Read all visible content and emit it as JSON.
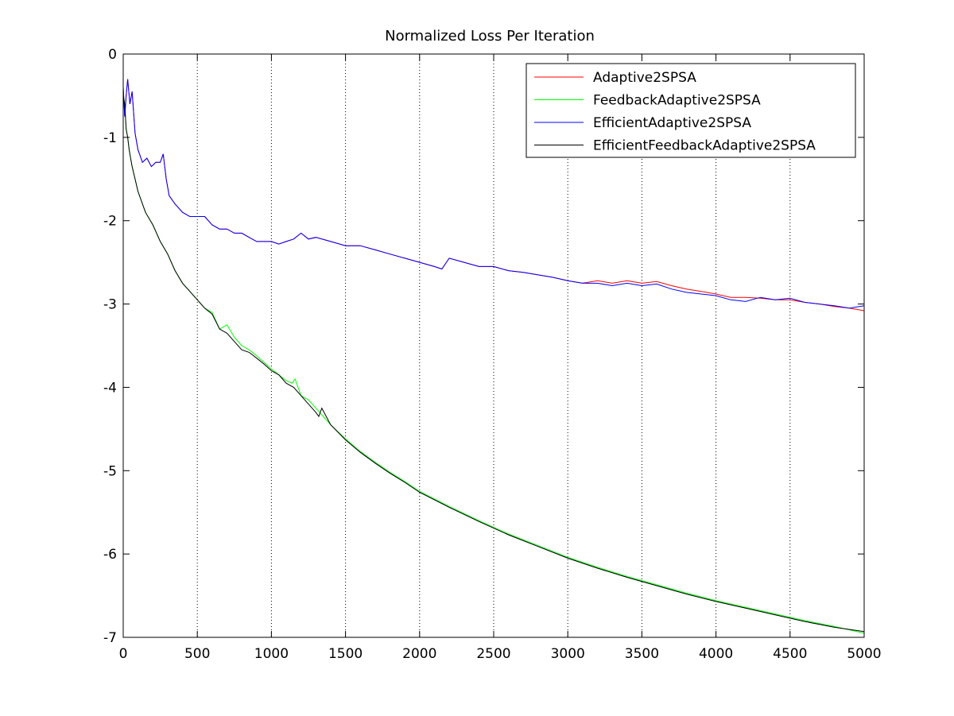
{
  "chart_data": {
    "type": "line",
    "title": "Normalized Loss Per Iteration",
    "xlabel": "",
    "ylabel": "",
    "xlim": [
      0,
      5000
    ],
    "ylim": [
      -7,
      0
    ],
    "x_ticks": [
      0,
      500,
      1000,
      1500,
      2000,
      2500,
      3000,
      3500,
      4000,
      4500,
      5000
    ],
    "y_ticks": [
      0,
      -1,
      -2,
      -3,
      -4,
      -5,
      -6,
      -7
    ],
    "x_tick_labels": [
      "0",
      "500",
      "1000",
      "1500",
      "2000",
      "2500",
      "3000",
      "3500",
      "4000",
      "4500",
      "5000"
    ],
    "y_tick_labels": [
      "0",
      "-1",
      "-2",
      "-3",
      "-4",
      "-5",
      "-6",
      "-7"
    ],
    "grid": "vertical dotted lines at x ticks",
    "legend_position": "top-right",
    "series": [
      {
        "name": "Adaptive2SPSA",
        "color": "#ff0000",
        "x": [
          0,
          10,
          20,
          30,
          45,
          60,
          80,
          100,
          130,
          160,
          190,
          220,
          250,
          270,
          290,
          310,
          350,
          400,
          450,
          500,
          550,
          600,
          650,
          700,
          750,
          800,
          850,
          900,
          950,
          1000,
          1050,
          1100,
          1150,
          1200,
          1250,
          1300,
          1400,
          1500,
          1600,
          1700,
          1800,
          1900,
          2000,
          2100,
          2150,
          2200,
          2300,
          2400,
          2500,
          2600,
          2700,
          2800,
          2900,
          3000,
          3100,
          3200,
          3300,
          3400,
          3500,
          3600,
          3700,
          3800,
          3900,
          4000,
          4100,
          4200,
          4300,
          4400,
          4500,
          4600,
          4700,
          4800,
          4900,
          5000
        ],
        "y": [
          -0.4,
          -0.75,
          -0.5,
          -0.3,
          -0.6,
          -0.45,
          -0.95,
          -1.15,
          -1.3,
          -1.25,
          -1.35,
          -1.3,
          -1.3,
          -1.2,
          -1.5,
          -1.7,
          -1.8,
          -1.9,
          -1.95,
          -1.95,
          -1.95,
          -2.05,
          -2.1,
          -2.1,
          -2.15,
          -2.15,
          -2.2,
          -2.25,
          -2.25,
          -2.25,
          -2.28,
          -2.25,
          -2.22,
          -2.15,
          -2.22,
          -2.2,
          -2.25,
          -2.3,
          -2.3,
          -2.35,
          -2.4,
          -2.45,
          -2.5,
          -2.55,
          -2.58,
          -2.45,
          -2.5,
          -2.55,
          -2.55,
          -2.6,
          -2.62,
          -2.65,
          -2.68,
          -2.72,
          -2.75,
          -2.72,
          -2.75,
          -2.72,
          -2.75,
          -2.73,
          -2.78,
          -2.82,
          -2.85,
          -2.88,
          -2.92,
          -2.92,
          -2.93,
          -2.95,
          -2.95,
          -2.98,
          -3.0,
          -3.03,
          -3.05,
          -3.08
        ]
      },
      {
        "name": "FeedbackAdaptive2SPSA",
        "color": "#00ff00",
        "x": [
          0,
          10,
          20,
          30,
          40,
          50,
          60,
          80,
          100,
          150,
          200,
          250,
          300,
          350,
          400,
          450,
          500,
          550,
          600,
          650,
          700,
          750,
          800,
          850,
          900,
          950,
          1000,
          1050,
          1100,
          1140,
          1160,
          1200,
          1250,
          1300,
          1400,
          1500,
          1600,
          1700,
          1800,
          1900,
          2000,
          2200,
          2400,
          2600,
          2800,
          3000,
          3200,
          3400,
          3600,
          3800,
          4000,
          4200,
          4400,
          4600,
          4800,
          5000
        ],
        "y": [
          -0.5,
          -0.6,
          -0.9,
          -1.0,
          -1.15,
          -1.25,
          -1.35,
          -1.5,
          -1.65,
          -1.9,
          -2.05,
          -2.25,
          -2.4,
          -2.6,
          -2.75,
          -2.85,
          -2.95,
          -3.05,
          -3.1,
          -3.3,
          -3.25,
          -3.4,
          -3.5,
          -3.55,
          -3.62,
          -3.7,
          -3.78,
          -3.85,
          -3.92,
          -3.95,
          -3.9,
          -4.1,
          -4.15,
          -4.25,
          -4.45,
          -4.62,
          -4.77,
          -4.9,
          -5.02,
          -5.13,
          -5.25,
          -5.43,
          -5.6,
          -5.76,
          -5.9,
          -6.04,
          -6.16,
          -6.27,
          -6.37,
          -6.47,
          -6.56,
          -6.64,
          -6.72,
          -6.8,
          -6.87,
          -6.95
        ]
      },
      {
        "name": "EfficientAdaptive2SPSA",
        "color": "#0000ff",
        "x": [
          0,
          10,
          20,
          30,
          45,
          60,
          80,
          100,
          130,
          160,
          190,
          220,
          250,
          270,
          290,
          310,
          350,
          400,
          450,
          500,
          550,
          600,
          650,
          700,
          750,
          800,
          850,
          900,
          950,
          1000,
          1050,
          1100,
          1150,
          1200,
          1250,
          1300,
          1400,
          1500,
          1600,
          1700,
          1800,
          1900,
          2000,
          2100,
          2150,
          2200,
          2300,
          2400,
          2500,
          2600,
          2700,
          2800,
          2900,
          3000,
          3100,
          3200,
          3300,
          3400,
          3500,
          3600,
          3700,
          3800,
          3900,
          4000,
          4100,
          4200,
          4300,
          4400,
          4500,
          4600,
          4700,
          4800,
          4900,
          5000
        ],
        "y": [
          -0.4,
          -0.75,
          -0.5,
          -0.3,
          -0.6,
          -0.45,
          -0.95,
          -1.15,
          -1.3,
          -1.25,
          -1.35,
          -1.3,
          -1.3,
          -1.2,
          -1.5,
          -1.7,
          -1.8,
          -1.9,
          -1.95,
          -1.95,
          -1.95,
          -2.05,
          -2.1,
          -2.1,
          -2.15,
          -2.15,
          -2.2,
          -2.25,
          -2.25,
          -2.25,
          -2.28,
          -2.25,
          -2.22,
          -2.15,
          -2.22,
          -2.2,
          -2.25,
          -2.3,
          -2.3,
          -2.35,
          -2.4,
          -2.45,
          -2.5,
          -2.55,
          -2.58,
          -2.45,
          -2.5,
          -2.55,
          -2.55,
          -2.6,
          -2.62,
          -2.65,
          -2.68,
          -2.72,
          -2.75,
          -2.75,
          -2.78,
          -2.75,
          -2.78,
          -2.76,
          -2.82,
          -2.86,
          -2.88,
          -2.9,
          -2.95,
          -2.97,
          -2.92,
          -2.95,
          -2.93,
          -2.98,
          -3.0,
          -3.02,
          -3.05,
          -3.02
        ]
      },
      {
        "name": "EfficientFeedbackAdaptive2SPSA",
        "color": "#000000",
        "x": [
          0,
          10,
          20,
          30,
          40,
          50,
          60,
          80,
          100,
          150,
          200,
          250,
          300,
          350,
          400,
          450,
          500,
          550,
          600,
          650,
          700,
          750,
          800,
          850,
          900,
          950,
          1000,
          1050,
          1100,
          1150,
          1200,
          1250,
          1300,
          1320,
          1340,
          1400,
          1500,
          1600,
          1700,
          1800,
          1900,
          2000,
          2200,
          2400,
          2600,
          2800,
          3000,
          3200,
          3400,
          3600,
          3800,
          4000,
          4200,
          4400,
          4600,
          4800,
          5000
        ],
        "y": [
          -0.5,
          -0.6,
          -0.9,
          -1.0,
          -1.15,
          -1.25,
          -1.35,
          -1.5,
          -1.65,
          -1.9,
          -2.05,
          -2.25,
          -2.4,
          -2.6,
          -2.75,
          -2.85,
          -2.95,
          -3.05,
          -3.12,
          -3.3,
          -3.35,
          -3.45,
          -3.55,
          -3.58,
          -3.65,
          -3.72,
          -3.8,
          -3.85,
          -3.95,
          -4.0,
          -4.1,
          -4.2,
          -4.3,
          -4.35,
          -4.25,
          -4.45,
          -4.63,
          -4.78,
          -4.91,
          -5.03,
          -5.14,
          -5.26,
          -5.44,
          -5.61,
          -5.77,
          -5.91,
          -6.05,
          -6.17,
          -6.28,
          -6.38,
          -6.48,
          -6.57,
          -6.65,
          -6.73,
          -6.81,
          -6.88,
          -6.93
        ]
      }
    ]
  }
}
